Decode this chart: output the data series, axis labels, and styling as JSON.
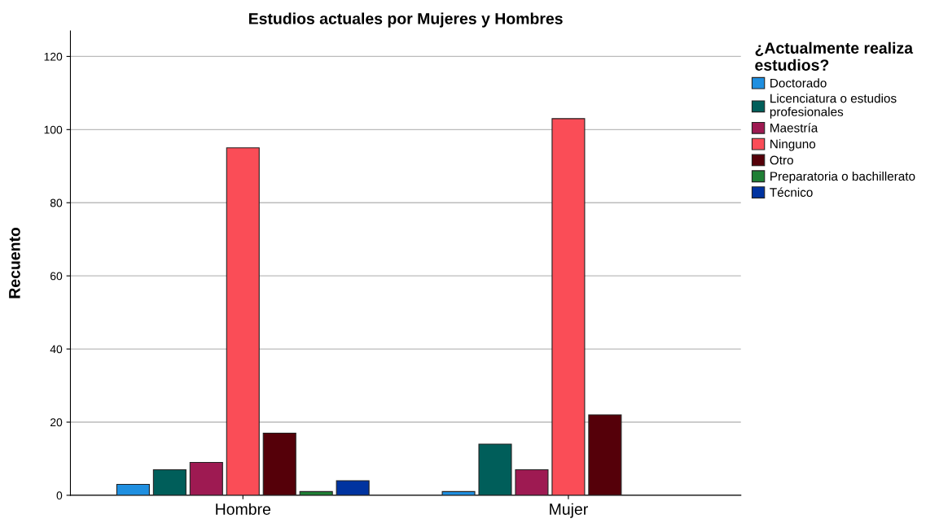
{
  "chart_data": {
    "type": "bar",
    "title": "Estudios actuales por Mujeres y Hombres",
    "ylabel": "Recuento",
    "legend_title": "¿Actualmente realiza\nestudios?",
    "categories": [
      "Hombre",
      "Mujer"
    ],
    "series": [
      {
        "name": "Doctorado",
        "color": "#1f8fe0",
        "values": [
          3,
          1
        ]
      },
      {
        "name": "Licenciatura o estudios\nprofesionales",
        "color": "#005e5a",
        "values": [
          7,
          14
        ]
      },
      {
        "name": "Maestría",
        "color": "#9e1a52",
        "values": [
          9,
          7
        ]
      },
      {
        "name": "Ninguno",
        "color": "#fa4d57",
        "values": [
          95,
          103
        ]
      },
      {
        "name": "Otro",
        "color": "#550009",
        "values": [
          17,
          22
        ]
      },
      {
        "name": "Preparatoria o bachillerato",
        "color": "#1f7f35",
        "values": [
          1,
          null
        ]
      },
      {
        "name": "Técnico",
        "color": "#0033a0",
        "values": [
          4,
          null
        ]
      }
    ],
    "ylim": [
      0,
      127
    ],
    "yticks": [
      0,
      20,
      40,
      60,
      80,
      100,
      120
    ],
    "grid": "y",
    "legend": "top right"
  }
}
